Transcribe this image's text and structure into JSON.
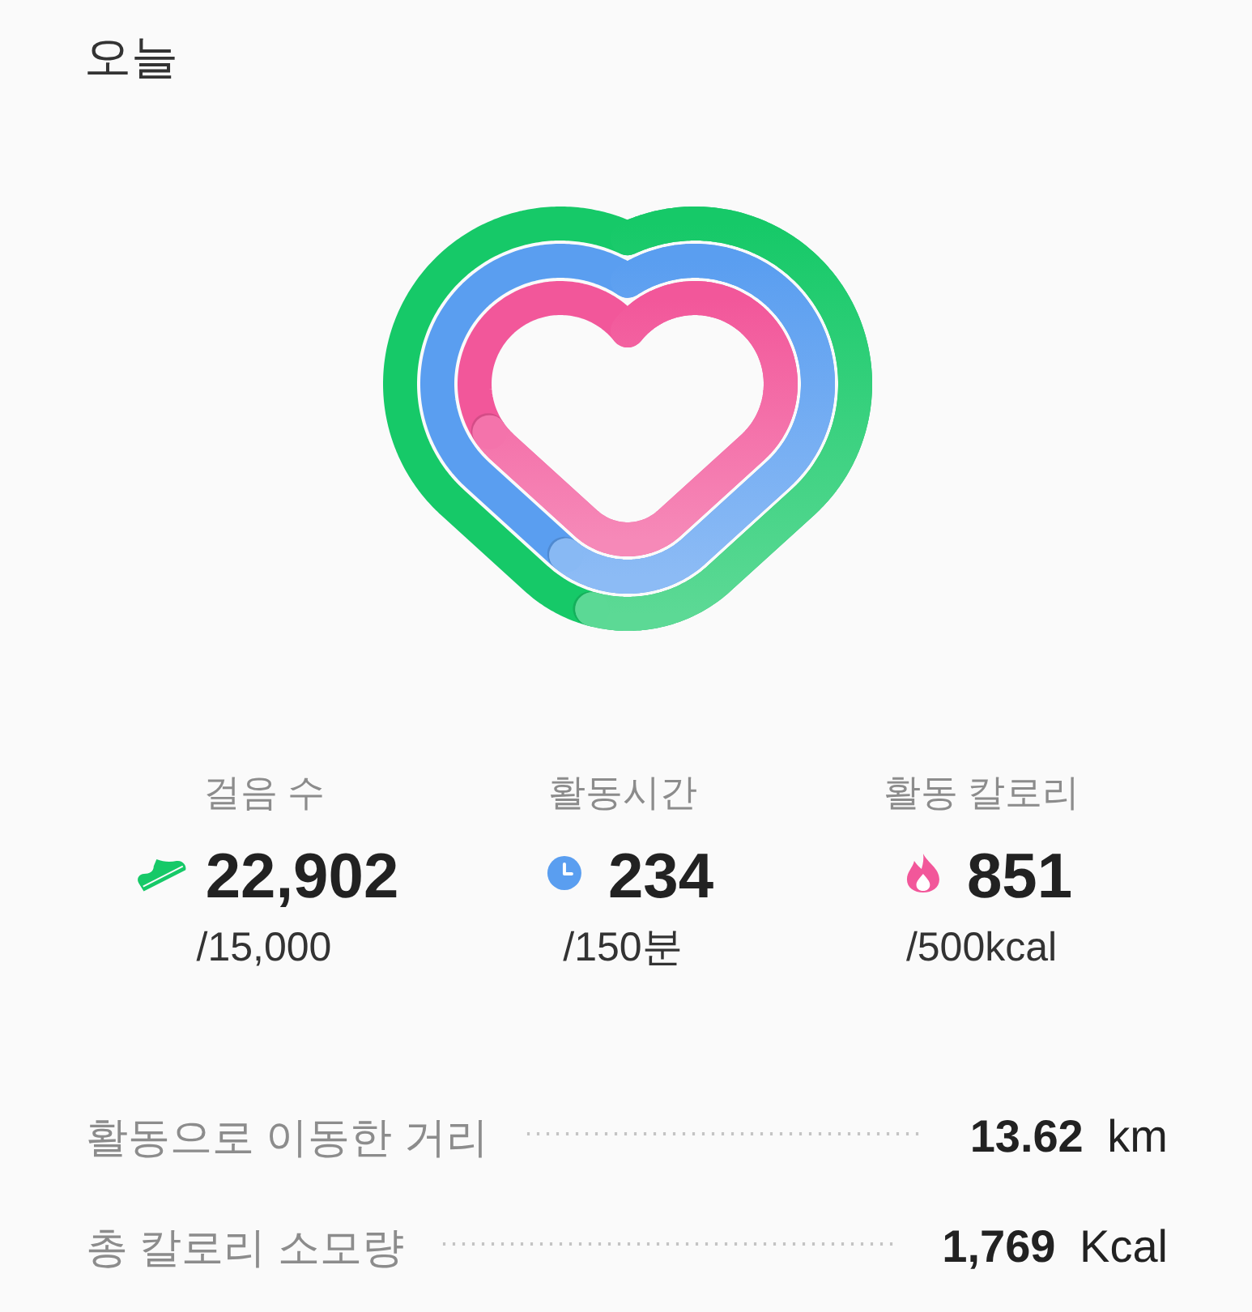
{
  "chart_data": {
    "type": "other",
    "title": "오늘",
    "categories": [
      "걸음 수",
      "활동시간",
      "활동 칼로리"
    ],
    "series": [
      {
        "values": [
          22902,
          234,
          851
        ],
        "value_labels": [
          "22,902",
          "234",
          "851"
        ],
        "colors": [
          "#16c968",
          "#5a9ef0",
          "#f2579a"
        ]
      },
      {
        "values": [
          15000,
          150,
          500
        ],
        "value_labels": [
          "/15,000",
          "/150분",
          "/500kcal"
        ]
      }
    ],
    "annotations": [
      "활동으로 이동한 거리",
      "13.62 km",
      "총 칼로리 소모량",
      "1,769 Kcal"
    ]
  }
}
